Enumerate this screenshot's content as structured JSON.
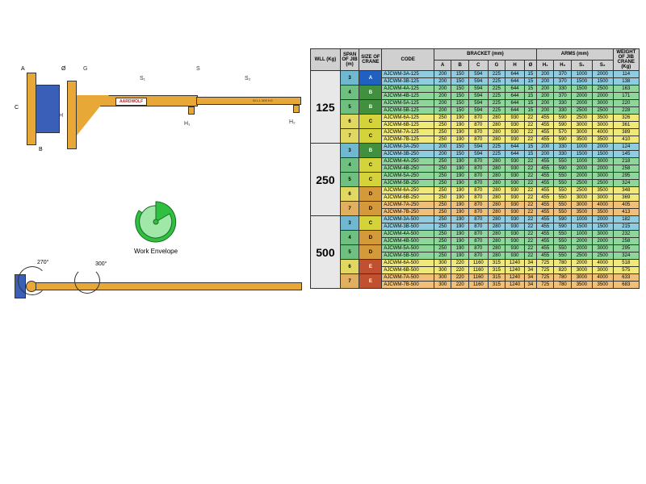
{
  "diagram": {
    "logo": "AARDWOLF",
    "wll_text": "W.L.L 500 KG",
    "envelope_label": "Work Envelope",
    "dims": {
      "A": "A",
      "B": "B",
      "C": "C",
      "O": "Ø",
      "G": "G",
      "S": "S",
      "S1": "S₁",
      "S2": "S₂",
      "H": "H",
      "H1": "H₁",
      "H2": "H₂"
    },
    "angles": {
      "a270": "270°",
      "a300": "300°"
    }
  },
  "table": {
    "headers": {
      "wll": "WLL (Kg)",
      "span": "SPAN OF JIB (m)",
      "size": "SIZE OF CRANE",
      "code": "CODE",
      "bracket": "BRACKET (mm)",
      "arms": "ARMS (mm)",
      "weight": "WEIGHT OF JIB CRANE (Kg)",
      "sub": [
        "A",
        "B",
        "C",
        "G",
        "H",
        "Ø",
        "H₁",
        "H₂",
        "S₁",
        "S₂"
      ]
    },
    "groups": [
      {
        "wll": "125",
        "rows": [
          {
            "span": "3",
            "size": "A",
            "code": "AJCWM-3A-125",
            "d": [
              200,
              150,
              594,
              225,
              644,
              15,
              200,
              370,
              1000,
              2000,
              114
            ],
            "cls": "blue",
            "sc": "A"
          },
          {
            "span": "3",
            "size": "A",
            "code": "AJCWM-3B-125",
            "d": [
              200,
              150,
              594,
              225,
              644,
              15,
              200,
              370,
              1500,
              1500,
              138
            ],
            "cls": "blue",
            "sc": "A"
          },
          {
            "span": "4",
            "size": "B",
            "code": "AJCWM-4A-125",
            "d": [
              200,
              150,
              594,
              225,
              644,
              15,
              200,
              330,
              1500,
              2500,
              163
            ],
            "cls": "green",
            "sc": "B"
          },
          {
            "span": "4",
            "size": "B",
            "code": "AJCWM-4B-125",
            "d": [
              200,
              150,
              594,
              225,
              644,
              15,
              200,
              370,
              2000,
              2000,
              171
            ],
            "cls": "green",
            "sc": "B"
          },
          {
            "span": "5",
            "size": "B",
            "code": "AJCWM-5A-125",
            "d": [
              200,
              150,
              594,
              225,
              644,
              15,
              200,
              330,
              2000,
              3000,
              220
            ],
            "cls": "green",
            "sc": "B"
          },
          {
            "span": "5",
            "size": "B",
            "code": "AJCWM-5B-125",
            "d": [
              200,
              150,
              594,
              225,
              644,
              15,
              200,
              330,
              2500,
              2500,
              228
            ],
            "cls": "green",
            "sc": "B"
          },
          {
            "span": "6",
            "size": "C",
            "code": "AJCWM-6A-125",
            "d": [
              250,
              190,
              870,
              280,
              930,
              22,
              455,
              590,
              2500,
              3500,
              326
            ],
            "cls": "yellow",
            "sc": "C"
          },
          {
            "span": "6",
            "size": "C",
            "code": "AJCWM-6B-125",
            "d": [
              250,
              190,
              870,
              280,
              930,
              22,
              455,
              590,
              3000,
              3000,
              361
            ],
            "cls": "yellow",
            "sc": "C"
          },
          {
            "span": "7",
            "size": "C",
            "code": "AJCWM-7A-125",
            "d": [
              250,
              190,
              870,
              280,
              930,
              22,
              455,
              570,
              3000,
              4000,
              389
            ],
            "cls": "yellow",
            "sc": "C"
          },
          {
            "span": "7",
            "size": "C",
            "code": "AJCWM-7B-125",
            "d": [
              250,
              190,
              870,
              280,
              930,
              22,
              455,
              590,
              3500,
              3500,
              410
            ],
            "cls": "yellow",
            "sc": "C"
          }
        ]
      },
      {
        "wll": "250",
        "rows": [
          {
            "span": "3",
            "size": "B",
            "code": "AJCWM-3A-250",
            "d": [
              200,
              150,
              594,
              225,
              644,
              15,
              200,
              330,
              1000,
              2000,
              124
            ],
            "cls": "blue",
            "sc": "B"
          },
          {
            "span": "3",
            "size": "B",
            "code": "AJCWM-3B-250",
            "d": [
              200,
              150,
              594,
              225,
              644,
              15,
              200,
              330,
              1500,
              1500,
              145
            ],
            "cls": "blue",
            "sc": "B"
          },
          {
            "span": "4",
            "size": "C",
            "code": "AJCWM-4A-250",
            "d": [
              250,
              190,
              870,
              280,
              930,
              22,
              455,
              550,
              1000,
              3000,
              218
            ],
            "cls": "green",
            "sc": "C"
          },
          {
            "span": "4",
            "size": "C",
            "code": "AJCWM-4B-250",
            "d": [
              250,
              190,
              870,
              280,
              930,
              22,
              455,
              590,
              2000,
              2000,
              258
            ],
            "cls": "green",
            "sc": "C"
          },
          {
            "span": "5",
            "size": "C",
            "code": "AJCWM-5A-250",
            "d": [
              250,
              190,
              870,
              280,
              930,
              22,
              455,
              550,
              2000,
              3000,
              295
            ],
            "cls": "green",
            "sc": "C"
          },
          {
            "span": "5",
            "size": "C",
            "code": "AJCWM-5B-250",
            "d": [
              250,
              190,
              870,
              280,
              930,
              22,
              455,
              550,
              2500,
              2500,
              324
            ],
            "cls": "green",
            "sc": "C"
          },
          {
            "span": "6",
            "size": "D",
            "code": "AJCWM-6A-250",
            "d": [
              250,
              190,
              870,
              280,
              930,
              22,
              455,
              550,
              2500,
              3500,
              348
            ],
            "cls": "yellow",
            "sc": "D"
          },
          {
            "span": "6",
            "size": "D",
            "code": "AJCWM-6B-250",
            "d": [
              250,
              190,
              870,
              280,
              930,
              22,
              455,
              550,
              3000,
              3000,
              369
            ],
            "cls": "yellow",
            "sc": "D"
          },
          {
            "span": "7",
            "size": "D",
            "code": "AJCWM-7A-250",
            "d": [
              250,
              190,
              870,
              280,
              930,
              22,
              455,
              550,
              3000,
              4000,
              405
            ],
            "cls": "orange",
            "sc": "D"
          },
          {
            "span": "7",
            "size": "D",
            "code": "AJCWM-7B-250",
            "d": [
              250,
              190,
              870,
              280,
              930,
              22,
              455,
              550,
              3500,
              3500,
              413
            ],
            "cls": "orange",
            "sc": "D"
          }
        ]
      },
      {
        "wll": "500",
        "rows": [
          {
            "span": "3",
            "size": "C",
            "code": "AJCWM-3A-500",
            "d": [
              250,
              190,
              870,
              280,
              930,
              22,
              455,
              590,
              1000,
              2000,
              182
            ],
            "cls": "blue",
            "sc": "C"
          },
          {
            "span": "3",
            "size": "C",
            "code": "AJCWM-3B-500",
            "d": [
              250,
              190,
              870,
              280,
              930,
              22,
              455,
              590,
              1500,
              1500,
              215
            ],
            "cls": "blue",
            "sc": "C"
          },
          {
            "span": "4",
            "size": "D",
            "code": "AJCWM-4A-500",
            "d": [
              250,
              190,
              870,
              280,
              930,
              22,
              455,
              550,
              1000,
              3000,
              232
            ],
            "cls": "green",
            "sc": "D"
          },
          {
            "span": "4",
            "size": "D",
            "code": "AJCWM-4B-500",
            "d": [
              250,
              190,
              870,
              280,
              930,
              22,
              455,
              550,
              2000,
              2000,
              258
            ],
            "cls": "green",
            "sc": "D"
          },
          {
            "span": "5",
            "size": "D",
            "code": "AJCWM-5A-500",
            "d": [
              250,
              190,
              870,
              280,
              930,
              22,
              455,
              550,
              2000,
              3000,
              295
            ],
            "cls": "green",
            "sc": "D"
          },
          {
            "span": "5",
            "size": "D",
            "code": "AJCWM-5B-500",
            "d": [
              250,
              190,
              870,
              280,
              930,
              22,
              455,
              550,
              2500,
              2500,
              324
            ],
            "cls": "green",
            "sc": "D"
          },
          {
            "span": "6",
            "size": "E",
            "code": "AJCWM-6A-500",
            "d": [
              300,
              220,
              1160,
              315,
              1240,
              34,
              725,
              780,
              2000,
              4000,
              518
            ],
            "cls": "yellow",
            "sc": "E"
          },
          {
            "span": "6",
            "size": "E",
            "code": "AJCWM-6B-500",
            "d": [
              300,
              220,
              1160,
              315,
              1240,
              34,
              725,
              820,
              3000,
              3000,
              575
            ],
            "cls": "yellow",
            "sc": "E"
          },
          {
            "span": "7",
            "size": "E",
            "code": "AJCWM-7A-500",
            "d": [
              300,
              220,
              1160,
              315,
              1240,
              34,
              725,
              780,
              3000,
              4000,
              633
            ],
            "cls": "orange",
            "sc": "E"
          },
          {
            "span": "7",
            "size": "E",
            "code": "AJCWM-7B-500",
            "d": [
              300,
              220,
              1160,
              315,
              1240,
              34,
              725,
              780,
              3500,
              3500,
              683
            ],
            "cls": "orange",
            "sc": "E"
          }
        ]
      }
    ]
  }
}
